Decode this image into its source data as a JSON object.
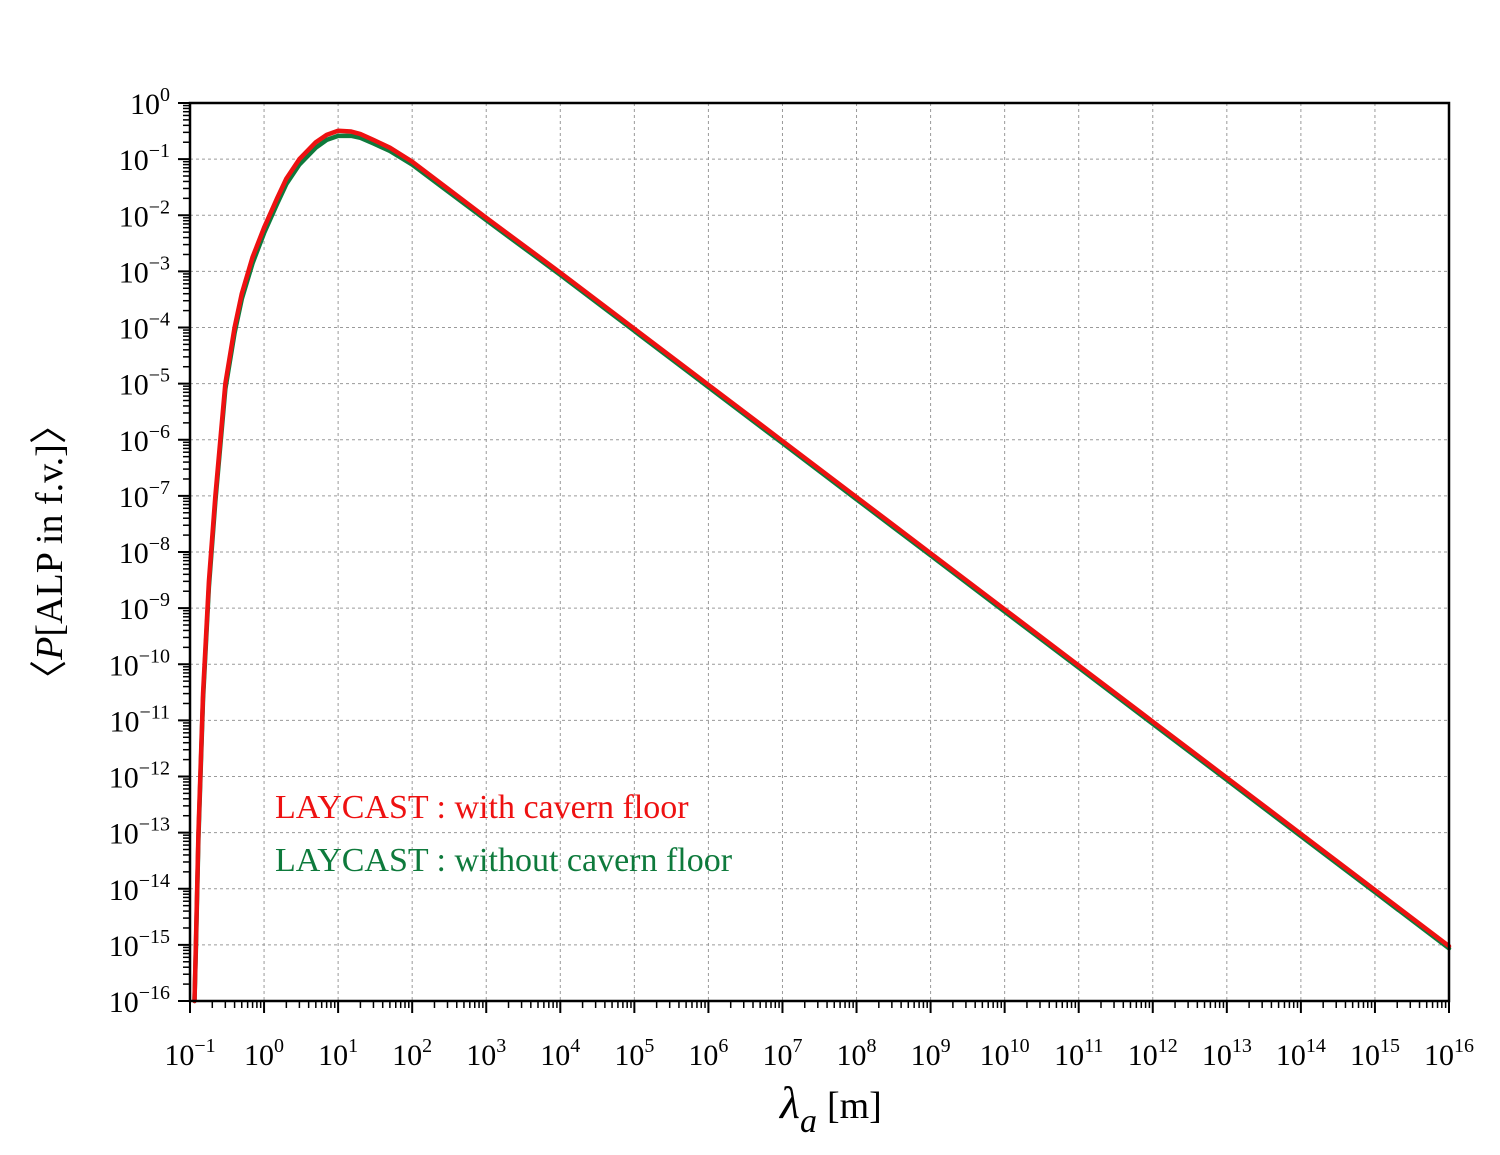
{
  "chart_data": {
    "type": "line",
    "x_scale": "log",
    "y_scale": "log",
    "xlabel_symbol": "λ",
    "xlabel_subscript": "a",
    "xlabel_unit": "[m]",
    "ylabel_open": "〈",
    "ylabel_symbol": "P",
    "ylabel_text": "[ALP in f.v.]",
    "ylabel_close": "〉",
    "xlim_exp": [
      -1,
      16
    ],
    "ylim_exp": [
      -16,
      0
    ],
    "x_ticks": [
      {
        "base": "10",
        "exp": "−1"
      },
      {
        "base": "10",
        "exp": "0"
      },
      {
        "base": "10",
        "exp": "1"
      },
      {
        "base": "10",
        "exp": "2"
      },
      {
        "base": "10",
        "exp": "3"
      },
      {
        "base": "10",
        "exp": "4"
      },
      {
        "base": "10",
        "exp": "5"
      },
      {
        "base": "10",
        "exp": "6"
      },
      {
        "base": "10",
        "exp": "7"
      },
      {
        "base": "10",
        "exp": "8"
      },
      {
        "base": "10",
        "exp": "9"
      },
      {
        "base": "10",
        "exp": "10"
      },
      {
        "base": "10",
        "exp": "11"
      },
      {
        "base": "10",
        "exp": "12"
      },
      {
        "base": "10",
        "exp": "13"
      },
      {
        "base": "10",
        "exp": "14"
      },
      {
        "base": "10",
        "exp": "15"
      },
      {
        "base": "10",
        "exp": "16"
      }
    ],
    "y_ticks": [
      {
        "base": "10",
        "exp": "0"
      },
      {
        "base": "10",
        "exp": "−1"
      },
      {
        "base": "10",
        "exp": "−2"
      },
      {
        "base": "10",
        "exp": "−3"
      },
      {
        "base": "10",
        "exp": "−4"
      },
      {
        "base": "10",
        "exp": "−5"
      },
      {
        "base": "10",
        "exp": "−6"
      },
      {
        "base": "10",
        "exp": "−7"
      },
      {
        "base": "10",
        "exp": "−8"
      },
      {
        "base": "10",
        "exp": "−9"
      },
      {
        "base": "10",
        "exp": "−10"
      },
      {
        "base": "10",
        "exp": "−11"
      },
      {
        "base": "10",
        "exp": "−12"
      },
      {
        "base": "10",
        "exp": "−13"
      },
      {
        "base": "10",
        "exp": "−14"
      },
      {
        "base": "10",
        "exp": "−15"
      },
      {
        "base": "10",
        "exp": "−16"
      }
    ],
    "grid": true,
    "legend_position": "lower-left",
    "series": [
      {
        "name": "LAYCAST : with cavern floor",
        "color": "#ee1111",
        "x": [
          0.115,
          0.12,
          0.13,
          0.15,
          0.18,
          0.22,
          0.3,
          0.4,
          0.5,
          0.7,
          1,
          1.5,
          2,
          3,
          5,
          7,
          10,
          15,
          20,
          30,
          50,
          100,
          300,
          1000,
          10000.0,
          100000.0,
          1000000.0,
          10000000.0,
          100000000.0,
          1000000000.0,
          10000000000.0,
          100000000000.0,
          1000000000000.0,
          10000000000000.0,
          100000000000000.0,
          1000000000000000.0,
          1e+16
        ],
        "y": [
          1e-16,
          1e-15,
          1e-13,
          3e-11,
          3e-09,
          1e-07,
          1e-05,
          0.0001,
          0.0004,
          0.0018,
          0.006,
          0.02,
          0.045,
          0.1,
          0.2,
          0.27,
          0.32,
          0.31,
          0.28,
          0.22,
          0.16,
          0.09,
          0.03,
          0.009,
          0.00095,
          9.5e-05,
          9.5e-06,
          9.5e-07,
          9.5e-08,
          9.5e-09,
          9.5e-10,
          9.5e-11,
          9.5e-12,
          9.5e-13,
          9.5e-14,
          9.5e-15,
          9.5e-16
        ]
      },
      {
        "name": "LAYCAST : without cavern floor",
        "color": "#0e7a3c",
        "x": [
          0.115,
          0.12,
          0.13,
          0.15,
          0.18,
          0.22,
          0.3,
          0.4,
          0.5,
          0.7,
          1,
          1.5,
          2,
          3,
          5,
          7,
          10,
          15,
          20,
          30,
          50,
          100,
          300,
          1000,
          10000.0,
          100000.0,
          1000000.0,
          10000000.0,
          100000000.0,
          1000000000.0,
          10000000000.0,
          100000000000.0,
          1000000000000.0,
          10000000000000.0,
          100000000000000.0,
          1000000000000000.0,
          1e+16
        ],
        "y": [
          1e-16,
          8e-16,
          8e-14,
          2.4e-11,
          2.4e-09,
          8e-08,
          8e-06,
          8e-05,
          0.00032,
          0.0014,
          0.0048,
          0.016,
          0.036,
          0.08,
          0.16,
          0.22,
          0.26,
          0.26,
          0.24,
          0.19,
          0.14,
          0.08,
          0.027,
          0.0082,
          0.00087,
          8.7e-05,
          8.7e-06,
          8.7e-07,
          8.7e-08,
          8.7e-09,
          8.7e-10,
          8.7e-11,
          8.7e-12,
          8.7e-13,
          8.7e-14,
          8.7e-15,
          8.7e-16
        ]
      }
    ]
  }
}
